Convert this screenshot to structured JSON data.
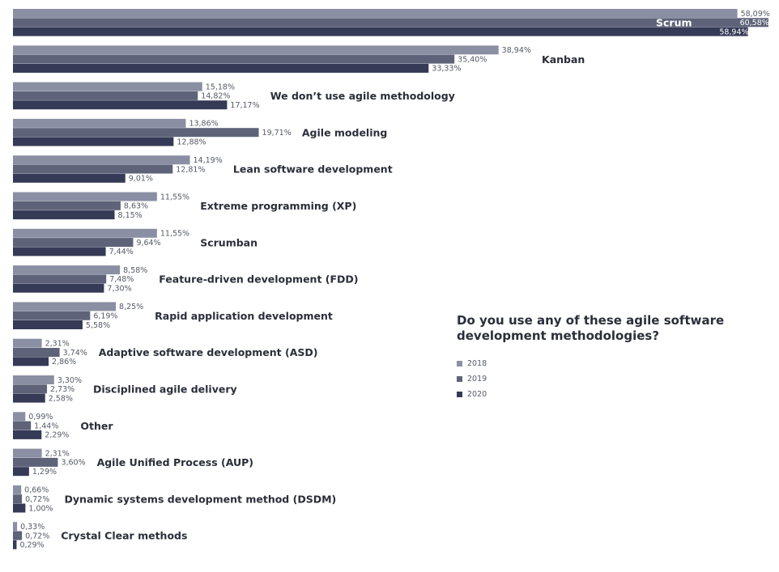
{
  "chart_data": {
    "type": "bar",
    "orientation": "horizontal",
    "title": "Do you use any of these agile software development methodologies?",
    "legend_position": "right",
    "grid": false,
    "xlim": [
      0,
      65
    ],
    "categories": [
      "Scrum",
      "Kanban",
      "We don’t use agile methodology",
      "Agile modeling",
      "Lean software development",
      "Extreme programming (XP)",
      "Scrumban",
      "Feature-driven development (FDD)",
      "Rapid application development",
      "Adaptive software development (ASD)",
      "Disciplined agile delivery",
      "Other",
      "Agile Unified Process (AUP)",
      "Dynamic systems development method (DSDM)",
      "Crystal Clear methods"
    ],
    "series": [
      {
        "name": "2018",
        "color": "#8b8fa3",
        "values": [
          58.09,
          38.94,
          15.18,
          13.86,
          14.19,
          11.55,
          11.55,
          8.58,
          8.25,
          2.31,
          3.3,
          0.99,
          2.31,
          0.66,
          0.33
        ],
        "labels": [
          "58,09%",
          "38,94%",
          "15,18%",
          "13,86%",
          "14,19%",
          "11,55%",
          "11,55%",
          "8,58%",
          "8,25%",
          "2,31%",
          "3,30%",
          "0,99%",
          "2,31%",
          "0,66%",
          "0,33%"
        ]
      },
      {
        "name": "2019",
        "color": "#5e6379",
        "values": [
          60.58,
          35.4,
          14.82,
          19.71,
          12.81,
          8.63,
          9.64,
          7.48,
          6.19,
          3.74,
          2.73,
          1.44,
          3.6,
          0.72,
          0.72
        ],
        "labels": [
          "60,58%",
          "35,40%",
          "14,82%",
          "19,71%",
          "12,81%",
          "8,63%",
          "9,64%",
          "7,48%",
          "6,19%",
          "3,74%",
          "2,73%",
          "1,44%",
          "3,60%",
          "0,72%",
          "0,72%"
        ]
      },
      {
        "name": "2020",
        "color": "#353a56",
        "values": [
          58.94,
          33.33,
          17.17,
          12.88,
          9.01,
          8.15,
          7.44,
          7.3,
          5.58,
          2.86,
          2.58,
          2.29,
          1.29,
          1.0,
          0.29
        ],
        "labels": [
          "58,94%",
          "33,33%",
          "17,17%",
          "12,88%",
          "9,01%",
          "8,15%",
          "7,44%",
          "7,30%",
          "5,58%",
          "2,86%",
          "2,58%",
          "2,29%",
          "1,29%",
          "1,00%",
          "0,29%"
        ]
      }
    ]
  }
}
